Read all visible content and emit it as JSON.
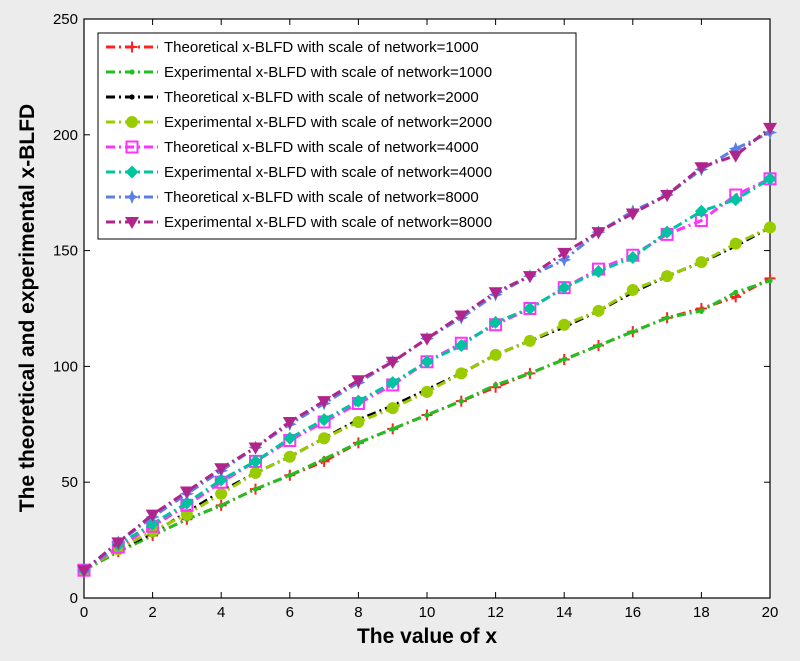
{
  "chart_data": {
    "type": "line",
    "title": "",
    "xlabel": "The value of x",
    "ylabel": "The theoretical and experimental x-BLFD",
    "xlim": [
      0,
      20
    ],
    "ylim": [
      0,
      250
    ],
    "xticks": [
      0,
      2,
      4,
      6,
      8,
      10,
      12,
      14,
      16,
      18,
      20
    ],
    "yticks": [
      0,
      50,
      100,
      150,
      200,
      250
    ],
    "grid": false,
    "legend_position": "top-left",
    "x": [
      0,
      1,
      2,
      3,
      4,
      5,
      6,
      7,
      8,
      9,
      10,
      11,
      12,
      13,
      14,
      15,
      16,
      17,
      18,
      19,
      20
    ],
    "series": [
      {
        "name": "Theoretical x-BLFD with scale of network=1000",
        "color": "#ff2020",
        "marker": "plus",
        "values": [
          12,
          20,
          27,
          34,
          40,
          47,
          53,
          59,
          67,
          73,
          79,
          85,
          91,
          97,
          103,
          109,
          115,
          121,
          125,
          130,
          138
        ]
      },
      {
        "name": "Experimental x-BLFD with scale of network=1000",
        "color": "#20c020",
        "marker": "point",
        "values": [
          12,
          20,
          27,
          34,
          40,
          47,
          53,
          60,
          67,
          73,
          79,
          85,
          92,
          97,
          103,
          109,
          115,
          121,
          124,
          132,
          137
        ]
      },
      {
        "name": "Theoretical x-BLFD with scale of network=2000",
        "color": "#000000",
        "marker": "point",
        "values": [
          12,
          21,
          28,
          37,
          46,
          54,
          61,
          69,
          77,
          83,
          90,
          97,
          105,
          111,
          117,
          124,
          132,
          139,
          145,
          152,
          160
        ]
      },
      {
        "name": "Experimental x-BLFD with scale of network=2000",
        "color": "#99cc00",
        "marker": "circle",
        "values": [
          12,
          21,
          29,
          36,
          45,
          54,
          61,
          69,
          76,
          82,
          89,
          97,
          105,
          111,
          118,
          124,
          133,
          139,
          145,
          153,
          160
        ]
      },
      {
        "name": "Theoretical x-BLFD with scale of network=4000",
        "color": "#ff33ff",
        "marker": "square",
        "values": [
          12,
          22,
          31,
          40,
          50,
          59,
          68,
          76,
          84,
          92,
          102,
          110,
          118,
          125,
          134,
          142,
          148,
          157,
          163,
          174,
          181
        ]
      },
      {
        "name": "Experimental x-BLFD with scale of network=4000",
        "color": "#00c3a0",
        "marker": "diamond",
        "values": [
          12,
          23,
          32,
          41,
          51,
          59,
          69,
          77,
          85,
          93,
          102,
          109,
          119,
          125,
          134,
          141,
          147,
          158,
          167,
          172,
          181
        ]
      },
      {
        "name": "Theoretical x-BLFD with scale of network=8000",
        "color": "#5b7fe8",
        "marker": "star",
        "values": [
          12,
          24,
          35,
          45,
          55,
          65,
          75,
          84,
          93,
          102,
          112,
          121,
          131,
          139,
          146,
          158,
          167,
          174,
          185,
          194,
          201
        ]
      },
      {
        "name": "Experimental x-BLFD with scale of network=8000",
        "color": "#b0258c",
        "marker": "triangle-down",
        "values": [
          12,
          24,
          36,
          46,
          56,
          65,
          76,
          85,
          94,
          102,
          112,
          122,
          132,
          139,
          149,
          158,
          166,
          174,
          186,
          191,
          203
        ]
      }
    ]
  }
}
